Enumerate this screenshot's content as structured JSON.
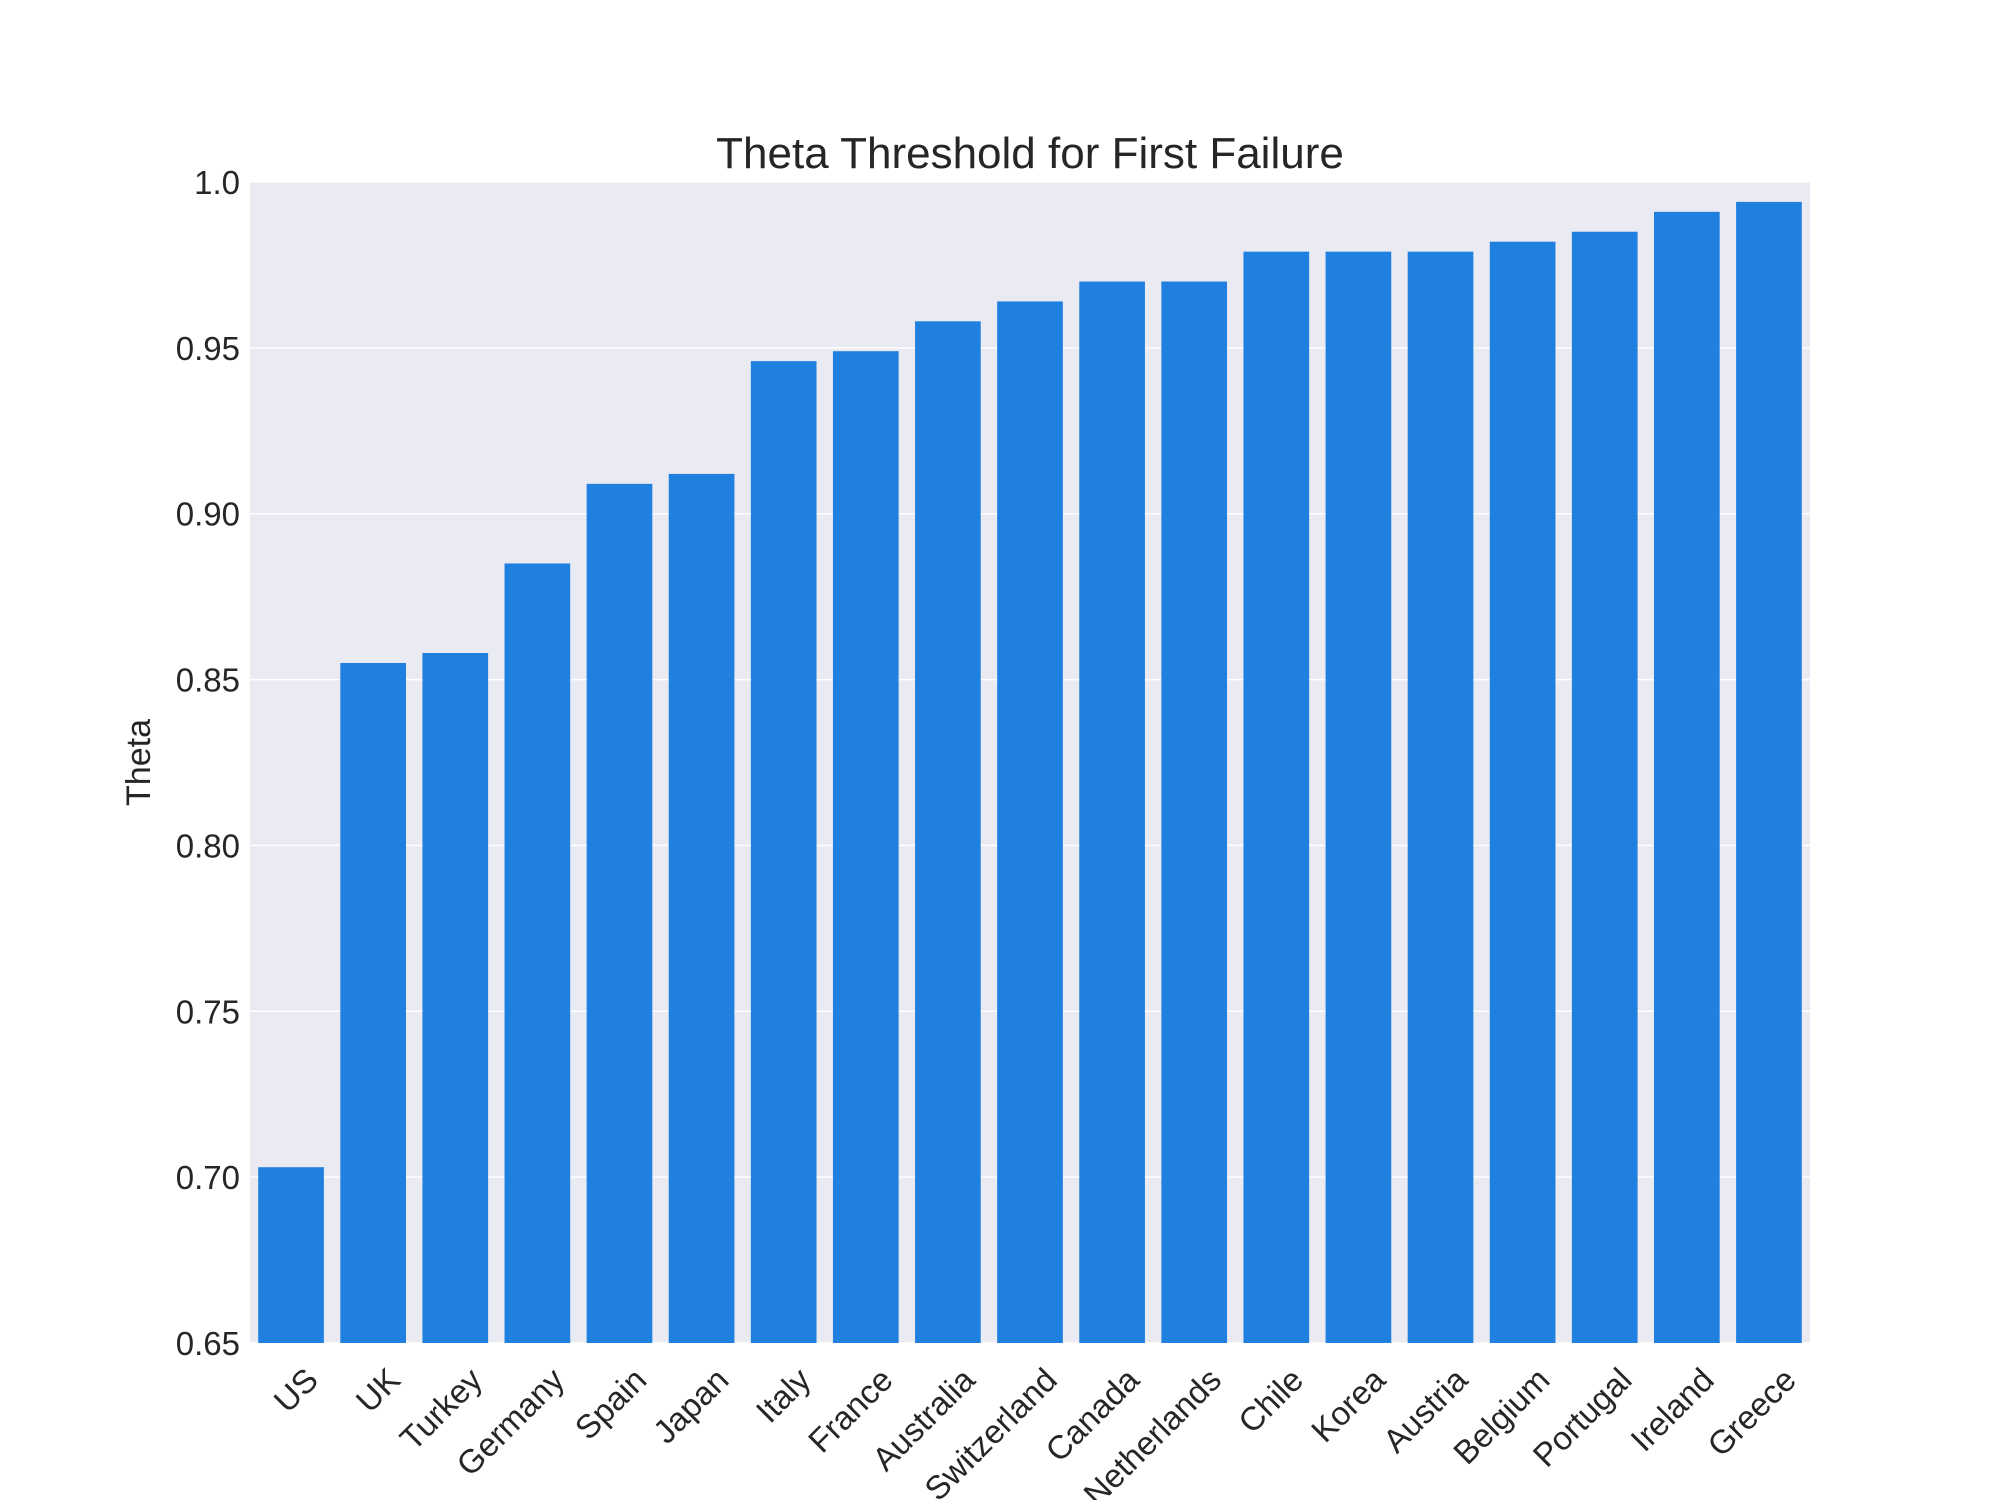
{
  "chart_data": {
    "type": "bar",
    "title": "Theta Threshold for First Failure",
    "xlabel": "",
    "ylabel": "Theta",
    "ylim": [
      0.65,
      1.0
    ],
    "yticks": [
      "0.65",
      "0.70",
      "0.75",
      "0.80",
      "0.85",
      "0.90",
      "0.95",
      "1.0"
    ],
    "grid": true,
    "categories": [
      "US",
      "UK",
      "Turkey",
      "Germany",
      "Spain",
      "Japan",
      "Italy",
      "France",
      "Australia",
      "Switzerland",
      "Canada",
      "Netherlands",
      "Chile",
      "Korea",
      "Austria",
      "Belgium",
      "Portugal",
      "Ireland",
      "Greece"
    ],
    "values": [
      0.703,
      0.855,
      0.858,
      0.885,
      0.909,
      0.912,
      0.946,
      0.949,
      0.958,
      0.964,
      0.97,
      0.97,
      0.979,
      0.979,
      0.979,
      0.982,
      0.985,
      0.991,
      0.994
    ],
    "colors": {
      "bar": "#2080e0",
      "plot_bg": "#eaeaf2",
      "grid": "#ffffff",
      "text": "#262626"
    }
  }
}
